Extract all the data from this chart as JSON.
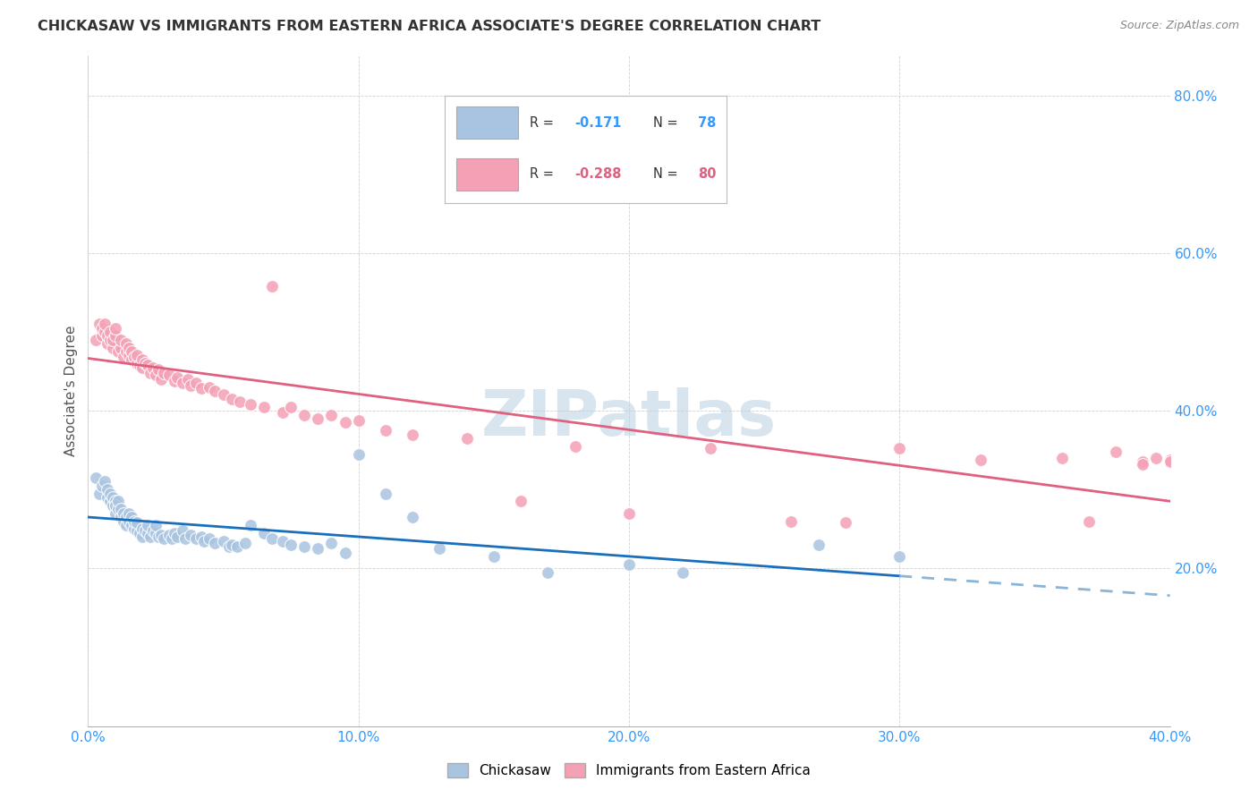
{
  "title": "CHICKASAW VS IMMIGRANTS FROM EASTERN AFRICA ASSOCIATE'S DEGREE CORRELATION CHART",
  "source": "Source: ZipAtlas.com",
  "ylabel": "Associate's Degree",
  "xlim": [
    0.0,
    0.4
  ],
  "ylim": [
    0.0,
    0.85
  ],
  "xtick_labels": [
    "0.0%",
    "",
    "10.0%",
    "",
    "20.0%",
    "",
    "30.0%",
    "",
    "40.0%"
  ],
  "xtick_vals": [
    0.0,
    0.05,
    0.1,
    0.15,
    0.2,
    0.25,
    0.3,
    0.35,
    0.4
  ],
  "ytick_labels": [
    "20.0%",
    "40.0%",
    "60.0%",
    "80.0%"
  ],
  "ytick_vals": [
    0.2,
    0.4,
    0.6,
    0.8
  ],
  "chickasaw_color": "#a8c4e0",
  "eastern_africa_color": "#f4a0b5",
  "trendline_chickasaw_solid_color": "#1a6fbd",
  "trendline_chickasaw_dashed_color": "#8ab4d8",
  "trendline_eastern_africa_color": "#e06080",
  "watermark": "ZIPatlas",
  "background_color": "#ffffff",
  "legend_box_color": "#ffffff",
  "legend_r1_val": "-0.171",
  "legend_n1_val": "78",
  "legend_r2_val": "-0.288",
  "legend_n2_val": "80",
  "chickasaw_x": [
    0.003,
    0.004,
    0.005,
    0.006,
    0.007,
    0.007,
    0.008,
    0.008,
    0.009,
    0.009,
    0.01,
    0.01,
    0.01,
    0.011,
    0.011,
    0.012,
    0.012,
    0.013,
    0.013,
    0.014,
    0.014,
    0.015,
    0.015,
    0.016,
    0.016,
    0.017,
    0.017,
    0.018,
    0.018,
    0.019,
    0.02,
    0.02,
    0.021,
    0.022,
    0.022,
    0.023,
    0.024,
    0.025,
    0.025,
    0.026,
    0.027,
    0.028,
    0.03,
    0.031,
    0.032,
    0.033,
    0.035,
    0.036,
    0.038,
    0.04,
    0.042,
    0.043,
    0.045,
    0.047,
    0.05,
    0.052,
    0.053,
    0.055,
    0.058,
    0.06,
    0.065,
    0.068,
    0.072,
    0.075,
    0.08,
    0.085,
    0.09,
    0.095,
    0.1,
    0.11,
    0.12,
    0.13,
    0.15,
    0.17,
    0.2,
    0.22,
    0.27,
    0.3
  ],
  "chickasaw_y": [
    0.315,
    0.295,
    0.305,
    0.31,
    0.29,
    0.3,
    0.285,
    0.295,
    0.28,
    0.29,
    0.285,
    0.27,
    0.28,
    0.275,
    0.285,
    0.265,
    0.275,
    0.26,
    0.27,
    0.255,
    0.265,
    0.26,
    0.27,
    0.255,
    0.265,
    0.25,
    0.26,
    0.248,
    0.258,
    0.245,
    0.25,
    0.24,
    0.248,
    0.245,
    0.255,
    0.24,
    0.248,
    0.245,
    0.255,
    0.24,
    0.243,
    0.238,
    0.242,
    0.238,
    0.245,
    0.24,
    0.248,
    0.238,
    0.242,
    0.238,
    0.24,
    0.235,
    0.238,
    0.232,
    0.235,
    0.228,
    0.23,
    0.228,
    0.232,
    0.255,
    0.245,
    0.238,
    0.235,
    0.23,
    0.228,
    0.225,
    0.232,
    0.22,
    0.345,
    0.295,
    0.265,
    0.225,
    0.215,
    0.195,
    0.205,
    0.195,
    0.23,
    0.215
  ],
  "eastern_africa_x": [
    0.003,
    0.004,
    0.005,
    0.005,
    0.006,
    0.006,
    0.007,
    0.007,
    0.008,
    0.008,
    0.009,
    0.009,
    0.01,
    0.01,
    0.011,
    0.012,
    0.012,
    0.013,
    0.014,
    0.014,
    0.015,
    0.015,
    0.016,
    0.016,
    0.017,
    0.018,
    0.018,
    0.019,
    0.02,
    0.02,
    0.021,
    0.022,
    0.023,
    0.024,
    0.025,
    0.026,
    0.027,
    0.028,
    0.03,
    0.032,
    0.033,
    0.035,
    0.037,
    0.038,
    0.04,
    0.042,
    0.045,
    0.047,
    0.05,
    0.053,
    0.056,
    0.06,
    0.065,
    0.068,
    0.072,
    0.075,
    0.08,
    0.085,
    0.09,
    0.095,
    0.1,
    0.11,
    0.12,
    0.14,
    0.16,
    0.18,
    0.2,
    0.23,
    0.26,
    0.28,
    0.3,
    0.33,
    0.36,
    0.37,
    0.38,
    0.39,
    0.39,
    0.395,
    0.4,
    0.4
  ],
  "eastern_africa_y": [
    0.49,
    0.51,
    0.495,
    0.505,
    0.5,
    0.51,
    0.485,
    0.495,
    0.49,
    0.5,
    0.48,
    0.49,
    0.495,
    0.505,
    0.475,
    0.48,
    0.49,
    0.468,
    0.475,
    0.485,
    0.47,
    0.48,
    0.465,
    0.475,
    0.468,
    0.46,
    0.47,
    0.458,
    0.465,
    0.455,
    0.46,
    0.458,
    0.448,
    0.455,
    0.445,
    0.452,
    0.44,
    0.448,
    0.445,
    0.438,
    0.442,
    0.435,
    0.44,
    0.432,
    0.435,
    0.428,
    0.43,
    0.425,
    0.42,
    0.415,
    0.412,
    0.408,
    0.405,
    0.558,
    0.398,
    0.405,
    0.395,
    0.39,
    0.395,
    0.385,
    0.388,
    0.375,
    0.37,
    0.365,
    0.285,
    0.355,
    0.27,
    0.352,
    0.26,
    0.258,
    0.352,
    0.338,
    0.34,
    0.26,
    0.348,
    0.335,
    0.332,
    0.34,
    0.338,
    0.335
  ]
}
